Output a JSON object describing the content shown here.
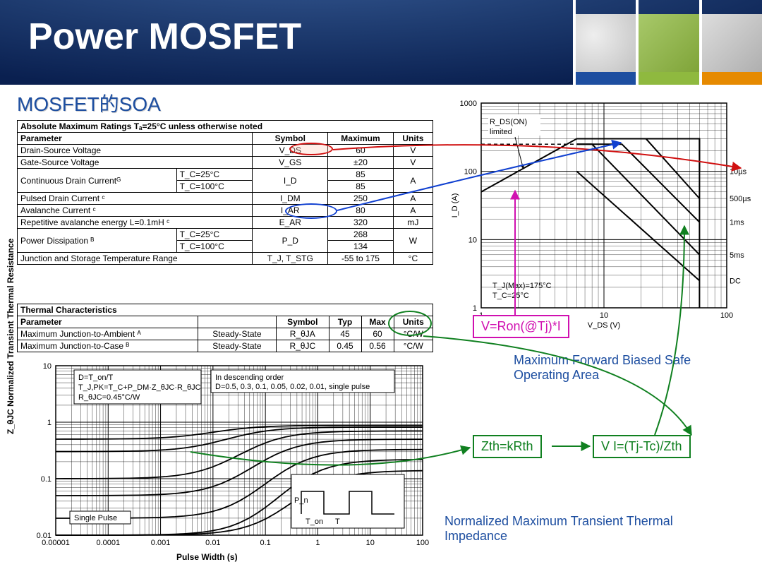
{
  "title": "Power MOSFET",
  "subtitle": "MOSFET的SOA",
  "sidebar_colors": [
    "#1d4ea0",
    "#8fb93f",
    "#e68a00"
  ],
  "table1": {
    "header": "Absolute Maximum Ratings  Tₐ=25°C unless otherwise noted",
    "cols": [
      "Parameter",
      "Symbol",
      "Maximum",
      "Units"
    ],
    "rows": [
      {
        "p": "Drain-Source Voltage",
        "s": "V_DS",
        "m": "60",
        "u": "V"
      },
      {
        "p": "Gate-Source Voltage",
        "s": "V_GS",
        "m": "±20",
        "u": "V"
      },
      {
        "p": "Continuous Drain Currentᴳ",
        "sub": [
          [
            "T_C=25°C",
            "",
            "85",
            ""
          ],
          [
            "T_C=100°C",
            "",
            "85",
            ""
          ]
        ],
        "s": "I_D",
        "u": "A"
      },
      {
        "p": "Pulsed Drain Current ᶜ",
        "s": "I_DM",
        "m": "250",
        "u": "A"
      },
      {
        "p": "Avalanche Current ᶜ",
        "s": "I_AR",
        "m": "80",
        "u": "A"
      },
      {
        "p": "Repetitive avalanche energy L=0.1mH ᶜ",
        "s": "E_AR",
        "m": "320",
        "u": "mJ"
      },
      {
        "p": "Power Dissipation ᴮ",
        "sub": [
          [
            "T_C=25°C",
            "",
            "268",
            ""
          ],
          [
            "T_C=100°C",
            "",
            "134",
            ""
          ]
        ],
        "s": "P_D",
        "u": "W"
      },
      {
        "p": "Junction and Storage Temperature Range",
        "s": "T_J, T_STG",
        "m": "-55 to 175",
        "u": "°C"
      }
    ]
  },
  "table2": {
    "header": "Thermal Characteristics",
    "cols": [
      "Parameter",
      "",
      "Symbol",
      "Typ",
      "Max",
      "Units"
    ],
    "rows": [
      [
        "Maximum Junction-to-Ambient ᴬ",
        "Steady-State",
        "R_θJA",
        "45",
        "60",
        "°C/W"
      ],
      [
        "Maximum Junction-to-Case ᴮ",
        "Steady-State",
        "R_θJC",
        "0.45",
        "0.56",
        "°C/W"
      ]
    ]
  },
  "thermal_chart": {
    "type": "line-loglog",
    "title1": "D=T_on/T",
    "title2": "T_J,PK=T_C+P_DM·Z_θJC·R_θJC",
    "title3": "R_θJC=0.45°C/W",
    "order_label": "In descending order",
    "order_values": "D=0.5, 0.3, 0.1, 0.05, 0.02, 0.01, single pulse",
    "single_pulse": "Single Pulse",
    "pulse_labels": {
      "Pn": "P_n",
      "Ton": "T_on",
      "T": "T"
    },
    "xlabel": "Pulse Width (s)",
    "ylabel": "Z_θJC Normalized Transient Thermal Resistance",
    "xlim": [
      1e-05,
      100
    ],
    "ylim": [
      0.01,
      10
    ],
    "xticks": [
      "0.00001",
      "0.0001",
      "0.001",
      "0.01",
      "0.1",
      "1",
      "10",
      "100"
    ],
    "yticks": [
      "0.01",
      "0.1",
      "1",
      "10"
    ],
    "line_color": "#000000",
    "grid_color": "#000000",
    "series_end_y": [
      0.88,
      0.82,
      0.7,
      0.5,
      0.33,
      0.22,
      0.14
    ],
    "series_start_y_log": [
      -0.3,
      -0.52,
      -1.0,
      -1.3,
      -1.7,
      -2.0,
      -2.0
    ]
  },
  "soa_chart": {
    "type": "line-loglog",
    "xlabel": "V_DS (V)",
    "ylabel": "I_D (A)",
    "xlim": [
      1,
      100
    ],
    "ylim": [
      1,
      1000
    ],
    "xticks": [
      "1",
      "10",
      "100"
    ],
    "yticks": [
      "1",
      "10",
      "100",
      "1000"
    ],
    "rds_label": "R_DS(ON) limited",
    "conditions": [
      "T_J(Max)=175°C",
      "T_C=25°C"
    ],
    "pulse_labels": [
      "10µs",
      "500µs",
      "1ms",
      "5ms",
      "DC"
    ],
    "line_color": "#000000"
  },
  "formulas": {
    "v_ron": "V=Ron(@Tj)*I",
    "zth": "Zth=kRth",
    "vi": "V I=(Tj-Tc)/Zth"
  },
  "captions": {
    "soa": "Maximum Forward Biased Safe Operating Area",
    "thermal": "Normalized Maximum Transient Thermal Impedance"
  },
  "colors": {
    "red": "#d01010",
    "blue": "#1040d0",
    "green": "#108020",
    "magenta": "#d010b0",
    "text_blue": "#1d4ea0"
  },
  "ellipses": {
    "e60": {
      "color": "#d01010"
    },
    "e250": {
      "color": "#1040d0"
    },
    "eunits": {
      "color": "#108020"
    }
  }
}
